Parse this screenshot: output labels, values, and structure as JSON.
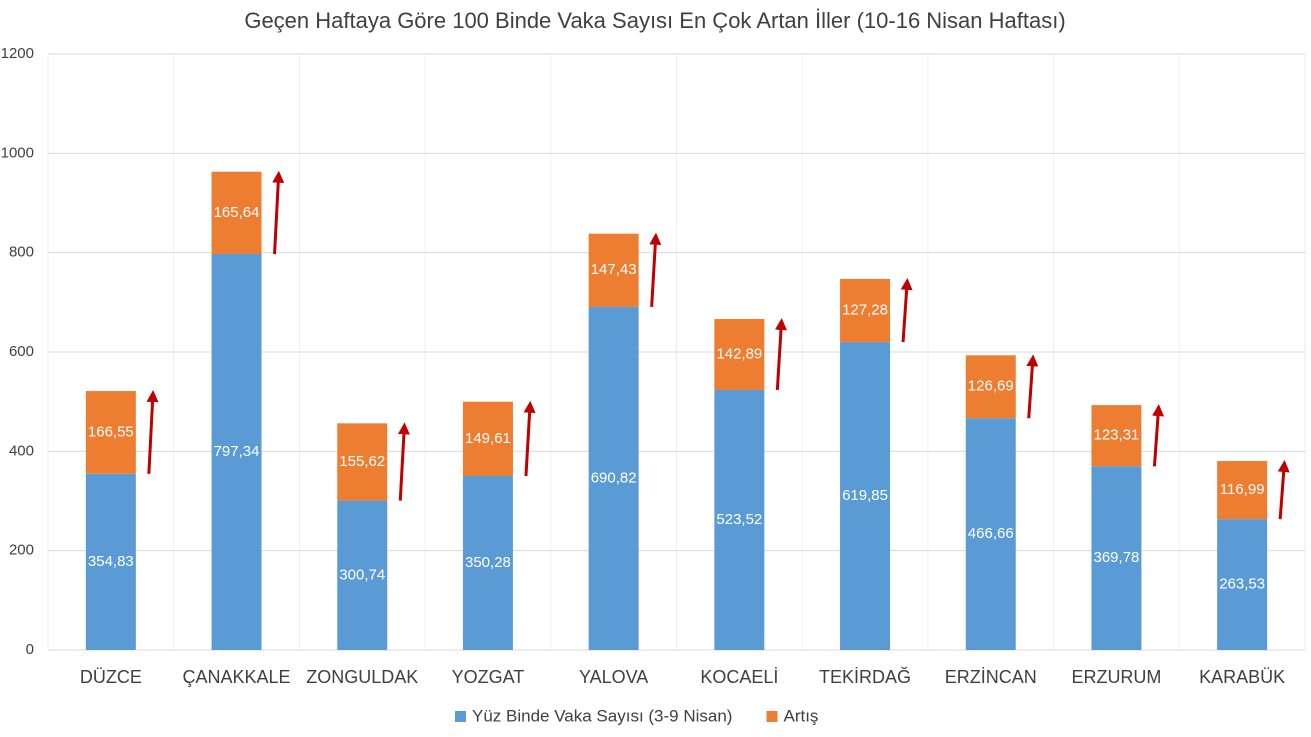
{
  "chart_data": {
    "type": "stacked_bar",
    "title": "Geçen Haftaya Göre 100 Binde Vaka Sayısı En Çok Artan İller (10-16 Nisan Haftası)",
    "categories": [
      "DÜZCE",
      "ÇANAKKALE",
      "ZONGULDAK",
      "YOZGAT",
      "YALOVA",
      "KOCAELİ",
      "TEKİRDAĞ",
      "ERZİNCAN",
      "ERZURUM",
      "KARABÜK"
    ],
    "series": [
      {
        "name": "Yüz Binde Vaka Sayısı (3-9 Nisan)",
        "color": "#5b9bd5",
        "values": [
          354.83,
          797.34,
          300.74,
          350.28,
          690.82,
          523.52,
          619.85,
          466.66,
          369.78,
          263.53
        ],
        "value_labels": [
          "354,83",
          "797,34",
          "300,74",
          "350,28",
          "690,82",
          "523,52",
          "619,85",
          "466,66",
          "369,78",
          "263,53"
        ]
      },
      {
        "name": "Artış",
        "color": "#ed7d31",
        "values": [
          166.55,
          165.64,
          155.62,
          149.61,
          147.43,
          142.89,
          127.28,
          126.69,
          123.31,
          116.99
        ],
        "value_labels": [
          "166,55",
          "165,64",
          "155,62",
          "149,61",
          "147,43",
          "142,89",
          "127,28",
          "126,69",
          "123,31",
          "116,99"
        ]
      }
    ],
    "ylim": [
      0,
      1200
    ],
    "yticks": [
      0,
      200,
      400,
      600,
      800,
      1000,
      1200
    ],
    "grid": true,
    "legend": "bottom"
  }
}
